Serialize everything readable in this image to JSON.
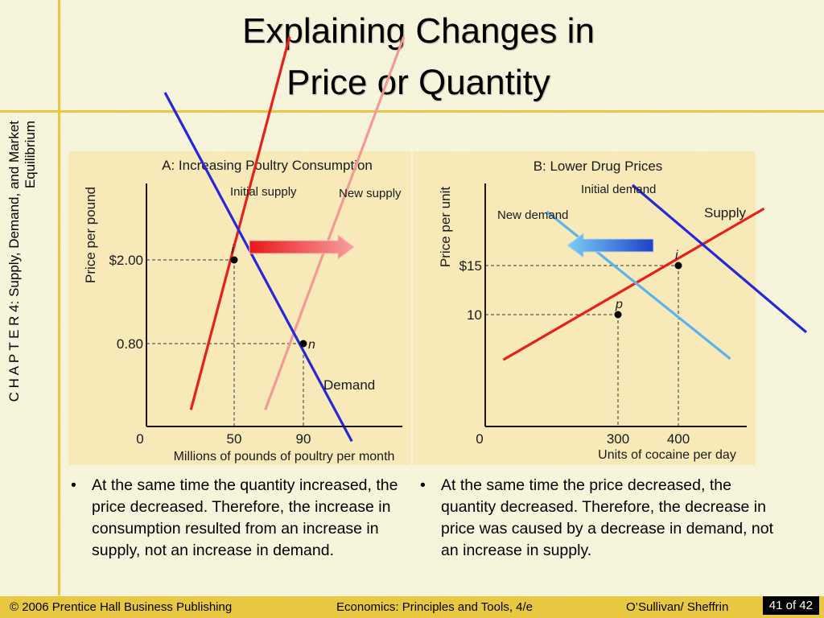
{
  "slide": {
    "title_line1": "Explaining Changes in",
    "title_line2": "Price or Quantity",
    "side_label": "C H A P T E R 4:  Supply, Demand, and Market Equilibrium",
    "bullet_a": "At the same time the quantity increased, the price decreased.  Therefore, the increase in consumption resulted from an increase in supply, not an increase in demand.",
    "bullet_b": "At the same time the price decreased, the quantity decreased.  Therefore, the decrease in price was caused by a decrease in demand, not an increase in supply.",
    "bullet_symbol": "•"
  },
  "footer": {
    "copyright": "© 2006 Prentice Hall Business Publishing",
    "book": "Economics: Principles and Tools, 4/e",
    "authors": "O’Sullivan/ Sheffrin",
    "page": "41",
    "page_of": "of 42"
  },
  "chart_data": [
    {
      "type": "line",
      "title": "A: Increasing Poultry Consumption",
      "xlabel": "Millions of pounds of poultry per month",
      "ylabel": "Price per pound",
      "origin_label": "0",
      "x_ticks": [
        {
          "value": 50,
          "label": "50"
        },
        {
          "value": 90,
          "label": "90"
        }
      ],
      "y_ticks": [
        {
          "value": 2.0,
          "label": "$2.00"
        },
        {
          "value": 0.8,
          "label": "0.80"
        }
      ],
      "series": [
        {
          "name": "Initial supply",
          "color": "#e8201c",
          "x": [
            25,
            82
          ],
          "y": [
            -0.15,
            5.2
          ]
        },
        {
          "name": "New supply",
          "color": "#f29a9a",
          "x": [
            68,
            148
          ],
          "y": [
            -0.15,
            5.2
          ]
        },
        {
          "name": "Demand",
          "color": "#2727d8",
          "x": [
            10,
            118
          ],
          "y": [
            4.4,
            -0.6
          ]
        }
      ],
      "points": [
        {
          "label": "i",
          "x": 50,
          "y": 2.0
        },
        {
          "label": "n",
          "x": 90,
          "y": 0.8
        }
      ],
      "annotation": "arrow right (supply shift)"
    },
    {
      "type": "line",
      "title": "B: Lower Drug Prices",
      "xlabel": "Units of cocaine per day",
      "ylabel": "Price per unit",
      "origin_label": "0",
      "x_ticks": [
        {
          "value": 300,
          "label": "300"
        },
        {
          "value": 400,
          "label": "400"
        }
      ],
      "y_ticks": [
        {
          "value": 15,
          "label": "$15"
        },
        {
          "value": 10,
          "label": "10"
        }
      ],
      "series": [
        {
          "name": "Supply",
          "color": "#e8201c",
          "x": [
            110,
            542
          ],
          "y": [
            5.4,
            20.8
          ]
        },
        {
          "name": "Initial demand",
          "color": "#2727d8",
          "x": [
            324,
            612
          ],
          "y": [
            23.2,
            8.2
          ]
        },
        {
          "name": "New demand",
          "color": "#5ab4ec",
          "x": [
            182,
            486
          ],
          "y": [
            20.5,
            5.5
          ]
        }
      ],
      "points": [
        {
          "label": "i",
          "x": 400,
          "y": 15
        },
        {
          "label": "p",
          "x": 300,
          "y": 10
        }
      ],
      "annotation": "arrow left (demand shift)"
    }
  ]
}
